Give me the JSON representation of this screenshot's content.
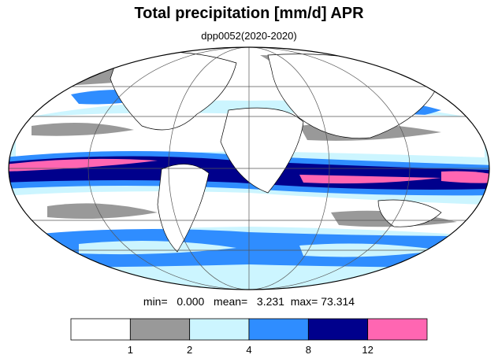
{
  "title": "Total precipitation [mm/d] APR",
  "subtitle": "dpp0052(2020-2020)",
  "stats": {
    "min_label": "min=",
    "min_value": "0.000",
    "mean_label": "mean=",
    "mean_value": "3.231",
    "max_label": "max=",
    "max_value": "73.314"
  },
  "colorbar": {
    "colors": [
      "#ffffff",
      "#999999",
      "#ccf5ff",
      "#2f8dff",
      "#00008c",
      "#ff66b2"
    ],
    "tick_labels": [
      "1",
      "2",
      "4",
      "8",
      "12"
    ]
  }
}
